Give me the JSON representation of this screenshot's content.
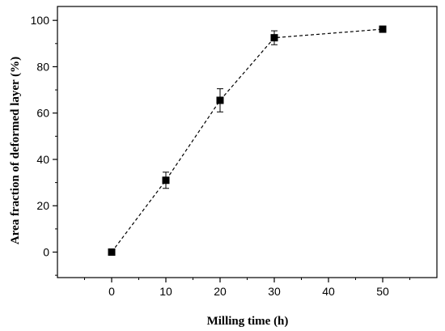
{
  "chart_data": {
    "type": "line",
    "title": "",
    "xlabel": "Milling time (h)",
    "ylabel": "Area fraction of deformed layer (%)",
    "xlim": [
      -10,
      60
    ],
    "ylim": [
      -11,
      106
    ],
    "xticks": [
      0,
      10,
      20,
      30,
      40,
      50
    ],
    "yticks": [
      0,
      20,
      40,
      60,
      80,
      100
    ],
    "grid": false,
    "legend": "none",
    "series": [
      {
        "x": [
          0,
          10,
          20,
          30,
          50
        ],
        "y": [
          0,
          31,
          65.5,
          92.5,
          96.2
        ],
        "error": [
          0,
          3.5,
          5,
          3,
          0
        ],
        "marker": "square",
        "line_style": "dashed",
        "color": "#000000"
      }
    ]
  }
}
